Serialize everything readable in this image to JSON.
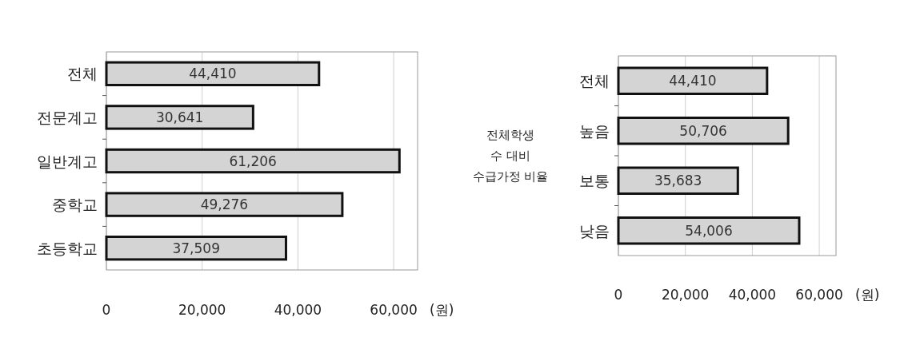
{
  "chart_data": [
    {
      "type": "bar",
      "orientation": "horizontal",
      "categories": [
        "전체",
        "전문계고",
        "일반계고",
        "중학교",
        "초등학교"
      ],
      "values": [
        44410,
        30641,
        61206,
        49276,
        37509
      ],
      "value_labels": [
        "44,410",
        "30,641",
        "61,206",
        "49,276",
        "37,509"
      ],
      "color": "#d4d4d4",
      "xlim": [
        0,
        65000
      ],
      "xticks": [
        0,
        {
          "value": 20000,
          "label": "20,000"
        },
        {
          "value": 40000,
          "label": "40,000"
        },
        {
          "value": 60000,
          "label": "60,000"
        }
      ],
      "xlabel": "(원)",
      "grid": "x"
    },
    {
      "type": "bar",
      "orientation": "horizontal",
      "categories": [
        "전체",
        "높음",
        "보통",
        "낮음"
      ],
      "values": [
        44410,
        50706,
        35683,
        54006
      ],
      "value_labels": [
        "44,410",
        "50,706",
        "35,683",
        "54,006"
      ],
      "color": "#d4d4d4",
      "xlim": [
        0,
        65000
      ],
      "xticks": [
        0,
        {
          "value": 20000,
          "label": "20,000"
        },
        {
          "value": 40000,
          "label": "40,000"
        },
        {
          "value": 60000,
          "label": "60,000"
        }
      ],
      "xlabel": "(원)",
      "ylabel": "전체학생\n수 대비\n수급가정 비율",
      "grid": "x"
    }
  ]
}
